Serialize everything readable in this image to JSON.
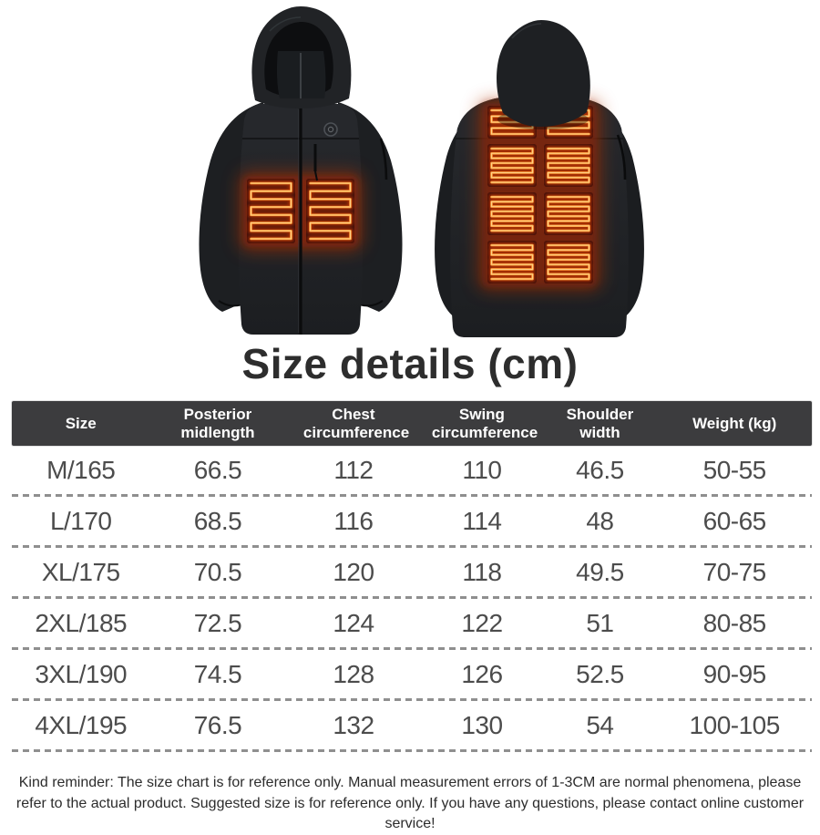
{
  "title": "Size details (cm)",
  "size_table": {
    "headers": [
      "Size",
      "Posterior midlength",
      "Chest circumference",
      "Swing circumference",
      "Shoulder width",
      "Weight (kg)"
    ],
    "rows": [
      [
        "M/165",
        "66.5",
        "112",
        "110",
        "46.5",
        "50-55"
      ],
      [
        "L/170",
        "68.5",
        "116",
        "114",
        "48",
        "60-65"
      ],
      [
        "XL/175",
        "70.5",
        "120",
        "118",
        "49.5",
        "70-75"
      ],
      [
        "2XL/185",
        "72.5",
        "124",
        "122",
        "51",
        "80-85"
      ],
      [
        "3XL/190",
        "74.5",
        "128",
        "126",
        "52.5",
        "90-95"
      ],
      [
        "4XL/195",
        "76.5",
        "132",
        "130",
        "54",
        "100-105"
      ]
    ]
  },
  "note": "Kind reminder: The size chart is for reference only. Manual measurement errors of 1-3CM are normal phenomena, please refer to the actual product. Suggested size is for reference only. If you have any questions, please contact online customer service!",
  "colors": {
    "header_bg": "#3c3c3e",
    "header_text": "#ffffff",
    "row_text": "#4c4c4c",
    "title_text": "#2d2d2d",
    "note_text": "#2c2c2c",
    "separator": "#8f8f8f",
    "jacket_black": "#212327",
    "heat_wire_orange": "#ff9b3a",
    "heat_glow_red": "#b33404"
  }
}
